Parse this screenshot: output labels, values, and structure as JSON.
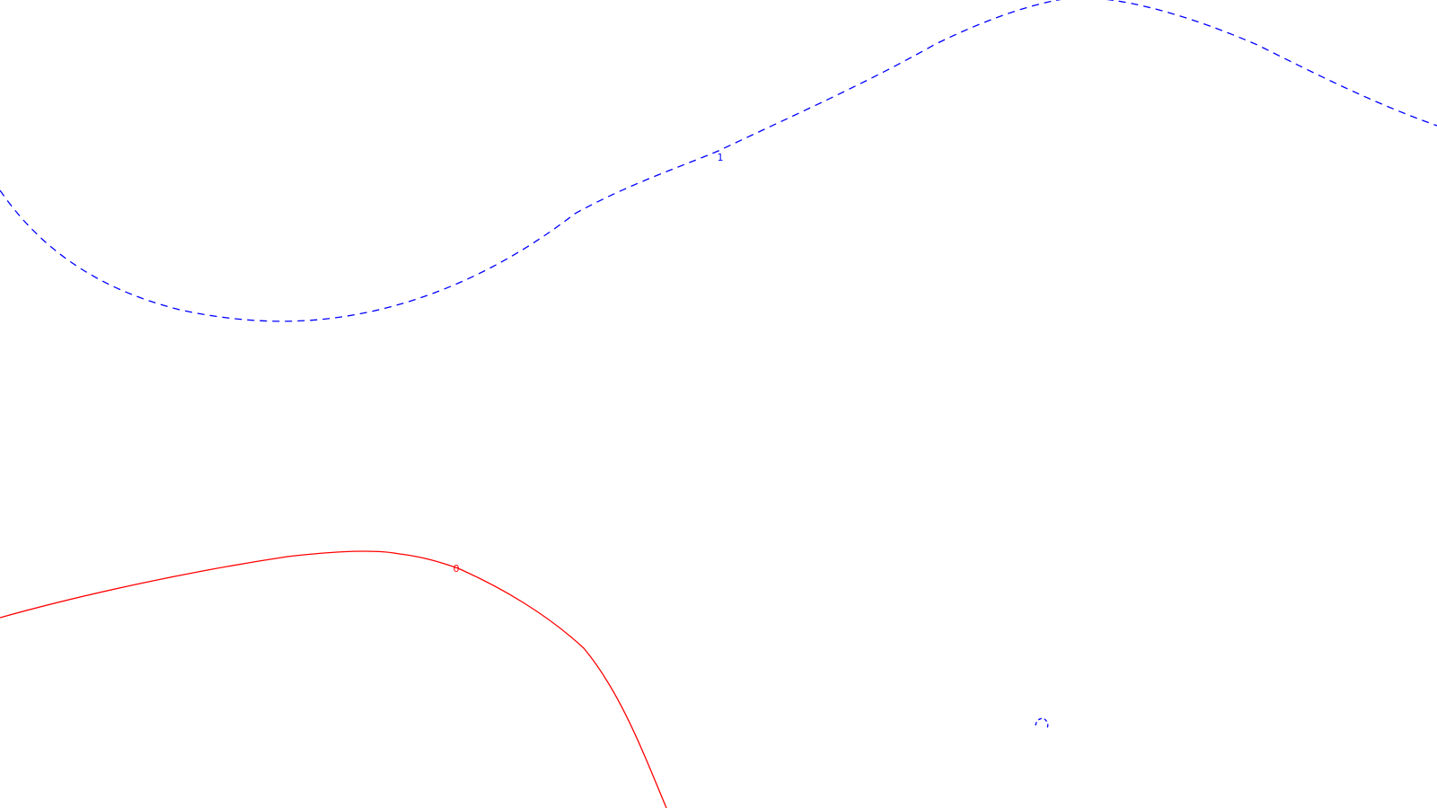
{
  "contours": [
    {
      "label": "1",
      "color": "#0000ff",
      "style": "dashed"
    },
    {
      "label": "0",
      "color": "#ff0000",
      "style": "solid"
    },
    {
      "label": "",
      "color": "#0000ff",
      "style": "dashed"
    }
  ]
}
